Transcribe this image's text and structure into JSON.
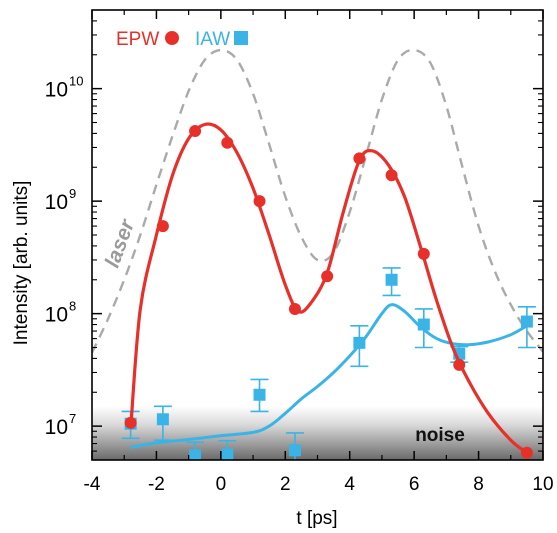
{
  "chart_data": {
    "type": "line",
    "xlabel": "t [ps]",
    "ylabel": "Intensity [arb. units]",
    "xlim": [
      -4,
      10
    ],
    "ylim": [
      5000000.0,
      50000000000.0
    ],
    "yscale": "log",
    "xticks": [
      -4,
      -2,
      0,
      2,
      4,
      6,
      8,
      10
    ],
    "yticks": [
      {
        "value": 10000000.0,
        "base": "10",
        "exp": "7"
      },
      {
        "value": 100000000.0,
        "base": "10",
        "exp": "8"
      },
      {
        "value": 1000000000.0,
        "base": "10",
        "exp": "9"
      },
      {
        "value": 10000000000.0,
        "base": "10",
        "exp": "10"
      }
    ],
    "legend": {
      "placement": "top-left",
      "entries": [
        {
          "label": "EPW",
          "color": "#e8302a",
          "marker": "circle"
        },
        {
          "label": "IAW",
          "color": "#3ab4e6",
          "marker": "square"
        }
      ]
    },
    "annotations": [
      {
        "text": "laser",
        "color": "#9a9a9a"
      },
      {
        "text": "noise",
        "color": "#111111"
      }
    ],
    "noise_band": {
      "y_top": 15000000.0
    },
    "series": [
      {
        "name": "EPW",
        "color": "#e8302a",
        "marker": "circle",
        "points": [
          {
            "x": -2.8,
            "y": 10700000.0
          },
          {
            "x": -1.8,
            "y": 600000000.0
          },
          {
            "x": -0.8,
            "y": 4200000000.0
          },
          {
            "x": 0.2,
            "y": 3300000000.0
          },
          {
            "x": 1.2,
            "y": 1000000000.0
          },
          {
            "x": 2.3,
            "y": 110000000.0
          },
          {
            "x": 3.3,
            "y": 215000000.0
          },
          {
            "x": 4.3,
            "y": 2400000000.0
          },
          {
            "x": 5.3,
            "y": 1700000000.0
          },
          {
            "x": 6.3,
            "y": 340000000.0
          },
          {
            "x": 7.4,
            "y": 35000000.0
          },
          {
            "x": 9.5,
            "y": 5800000.0
          }
        ],
        "fit": [
          {
            "x": -2.8,
            "y": 9500000.0
          },
          {
            "x": -2.5,
            "y": 110000000.0
          },
          {
            "x": -2.0,
            "y": 500000000.0
          },
          {
            "x": -1.5,
            "y": 1700000000.0
          },
          {
            "x": -1.0,
            "y": 3600000000.0
          },
          {
            "x": -0.5,
            "y": 4800000000.0
          },
          {
            "x": 0.0,
            "y": 4300000000.0
          },
          {
            "x": 0.5,
            "y": 2700000000.0
          },
          {
            "x": 1.0,
            "y": 1300000000.0
          },
          {
            "x": 1.5,
            "y": 500000000.0
          },
          {
            "x": 2.0,
            "y": 180000000.0
          },
          {
            "x": 2.4,
            "y": 105000000.0
          },
          {
            "x": 2.8,
            "y": 125000000.0
          },
          {
            "x": 3.3,
            "y": 230000000.0
          },
          {
            "x": 3.8,
            "y": 800000000.0
          },
          {
            "x": 4.3,
            "y": 2300000000.0
          },
          {
            "x": 4.7,
            "y": 2800000000.0
          },
          {
            "x": 5.2,
            "y": 2100000000.0
          },
          {
            "x": 5.7,
            "y": 1100000000.0
          },
          {
            "x": 6.2,
            "y": 390000000.0
          },
          {
            "x": 6.7,
            "y": 130000000.0
          },
          {
            "x": 7.2,
            "y": 50000000.0
          },
          {
            "x": 7.7,
            "y": 25000000.0
          },
          {
            "x": 8.3,
            "y": 13000000.0
          },
          {
            "x": 9.0,
            "y": 7500000.0
          },
          {
            "x": 9.5,
            "y": 5800000.0
          }
        ]
      },
      {
        "name": "IAW",
        "color": "#3ab4e6",
        "marker": "square",
        "points": [
          {
            "x": -2.8,
            "y": 10500000.0,
            "err": [
              7800000.0,
              13500000.0
            ]
          },
          {
            "x": -1.8,
            "y": 11500000.0,
            "err": [
              7500000.0,
              15000000.0
            ]
          },
          {
            "x": -0.8,
            "y": 5500000.0,
            "err": [
              4800000.0,
              7200000.0
            ]
          },
          {
            "x": 0.2,
            "y": 5600000.0,
            "err": [
              4800000.0,
              7400000.0
            ]
          },
          {
            "x": 1.2,
            "y": 19000000.0,
            "err": [
              13500000.0,
              26000000.0
            ]
          },
          {
            "x": 2.3,
            "y": 6100000.0,
            "err": [
              4600000.0,
              8700000.0
            ]
          },
          {
            "x": 4.3,
            "y": 55000000.0,
            "err": [
              34000000.0,
              78000000.0
            ]
          },
          {
            "x": 5.3,
            "y": 200000000.0,
            "err": [
              145000000.0,
              255000000.0
            ]
          },
          {
            "x": 6.3,
            "y": 80000000.0,
            "err": [
              50000000.0,
              110000000.0
            ]
          },
          {
            "x": 7.4,
            "y": 44000000.0,
            "err": [
              37000000.0,
              51000000.0
            ]
          },
          {
            "x": 9.5,
            "y": 85000000.0,
            "err": [
              50000000.0,
              115000000.0
            ]
          }
        ],
        "fit": [
          {
            "x": -2.8,
            "y": 6500000.0
          },
          {
            "x": -2.0,
            "y": 7100000.0
          },
          {
            "x": -1.0,
            "y": 7600000.0
          },
          {
            "x": 0.0,
            "y": 8200000.0
          },
          {
            "x": 1.0,
            "y": 8800000.0
          },
          {
            "x": 1.5,
            "y": 10000000.0
          },
          {
            "x": 2.0,
            "y": 13000000.0
          },
          {
            "x": 2.5,
            "y": 17500000.0
          },
          {
            "x": 3.0,
            "y": 22500000.0
          },
          {
            "x": 3.5,
            "y": 30000000.0
          },
          {
            "x": 4.0,
            "y": 42000000.0
          },
          {
            "x": 4.5,
            "y": 62000000.0
          },
          {
            "x": 5.0,
            "y": 100000000.0
          },
          {
            "x": 5.3,
            "y": 120000000.0
          },
          {
            "x": 5.7,
            "y": 105000000.0
          },
          {
            "x": 6.2,
            "y": 76000000.0
          },
          {
            "x": 6.7,
            "y": 60000000.0
          },
          {
            "x": 7.2,
            "y": 54000000.0
          },
          {
            "x": 7.7,
            "y": 53000000.0
          },
          {
            "x": 8.3,
            "y": 56000000.0
          },
          {
            "x": 9.0,
            "y": 65000000.0
          },
          {
            "x": 9.5,
            "y": 78000000.0
          }
        ]
      },
      {
        "name": "laser",
        "color": "#aaaaaa",
        "style": "dashed",
        "fit": [
          {
            "x": -4.0,
            "y": 45000000.0
          },
          {
            "x": -3.5,
            "y": 90000000.0
          },
          {
            "x": -3.0,
            "y": 200000000.0
          },
          {
            "x": -2.5,
            "y": 500000000.0
          },
          {
            "x": -2.0,
            "y": 1400000000.0
          },
          {
            "x": -1.5,
            "y": 3800000000.0
          },
          {
            "x": -1.0,
            "y": 9500000000.0
          },
          {
            "x": -0.5,
            "y": 18000000000.0
          },
          {
            "x": 0.0,
            "y": 22000000000.0
          },
          {
            "x": 0.5,
            "y": 18000000000.0
          },
          {
            "x": 1.0,
            "y": 9000000000.0
          },
          {
            "x": 1.5,
            "y": 3200000000.0
          },
          {
            "x": 2.0,
            "y": 1100000000.0
          },
          {
            "x": 2.5,
            "y": 480000000.0
          },
          {
            "x": 3.0,
            "y": 300000000.0
          },
          {
            "x": 3.5,
            "y": 350000000.0
          },
          {
            "x": 4.0,
            "y": 800000000.0
          },
          {
            "x": 4.5,
            "y": 2500000000.0
          },
          {
            "x": 5.0,
            "y": 8000000000.0
          },
          {
            "x": 5.5,
            "y": 18000000000.0
          },
          {
            "x": 6.0,
            "y": 22000000000.0
          },
          {
            "x": 6.5,
            "y": 17000000000.0
          },
          {
            "x": 7.0,
            "y": 7000000000.0
          },
          {
            "x": 7.5,
            "y": 2000000000.0
          },
          {
            "x": 8.0,
            "y": 600000000.0
          },
          {
            "x": 8.5,
            "y": 240000000.0
          },
          {
            "x": 9.0,
            "y": 120000000.0
          },
          {
            "x": 9.5,
            "y": 70000000.0
          },
          {
            "x": 10.0,
            "y": 46000000.0
          }
        ]
      }
    ]
  }
}
